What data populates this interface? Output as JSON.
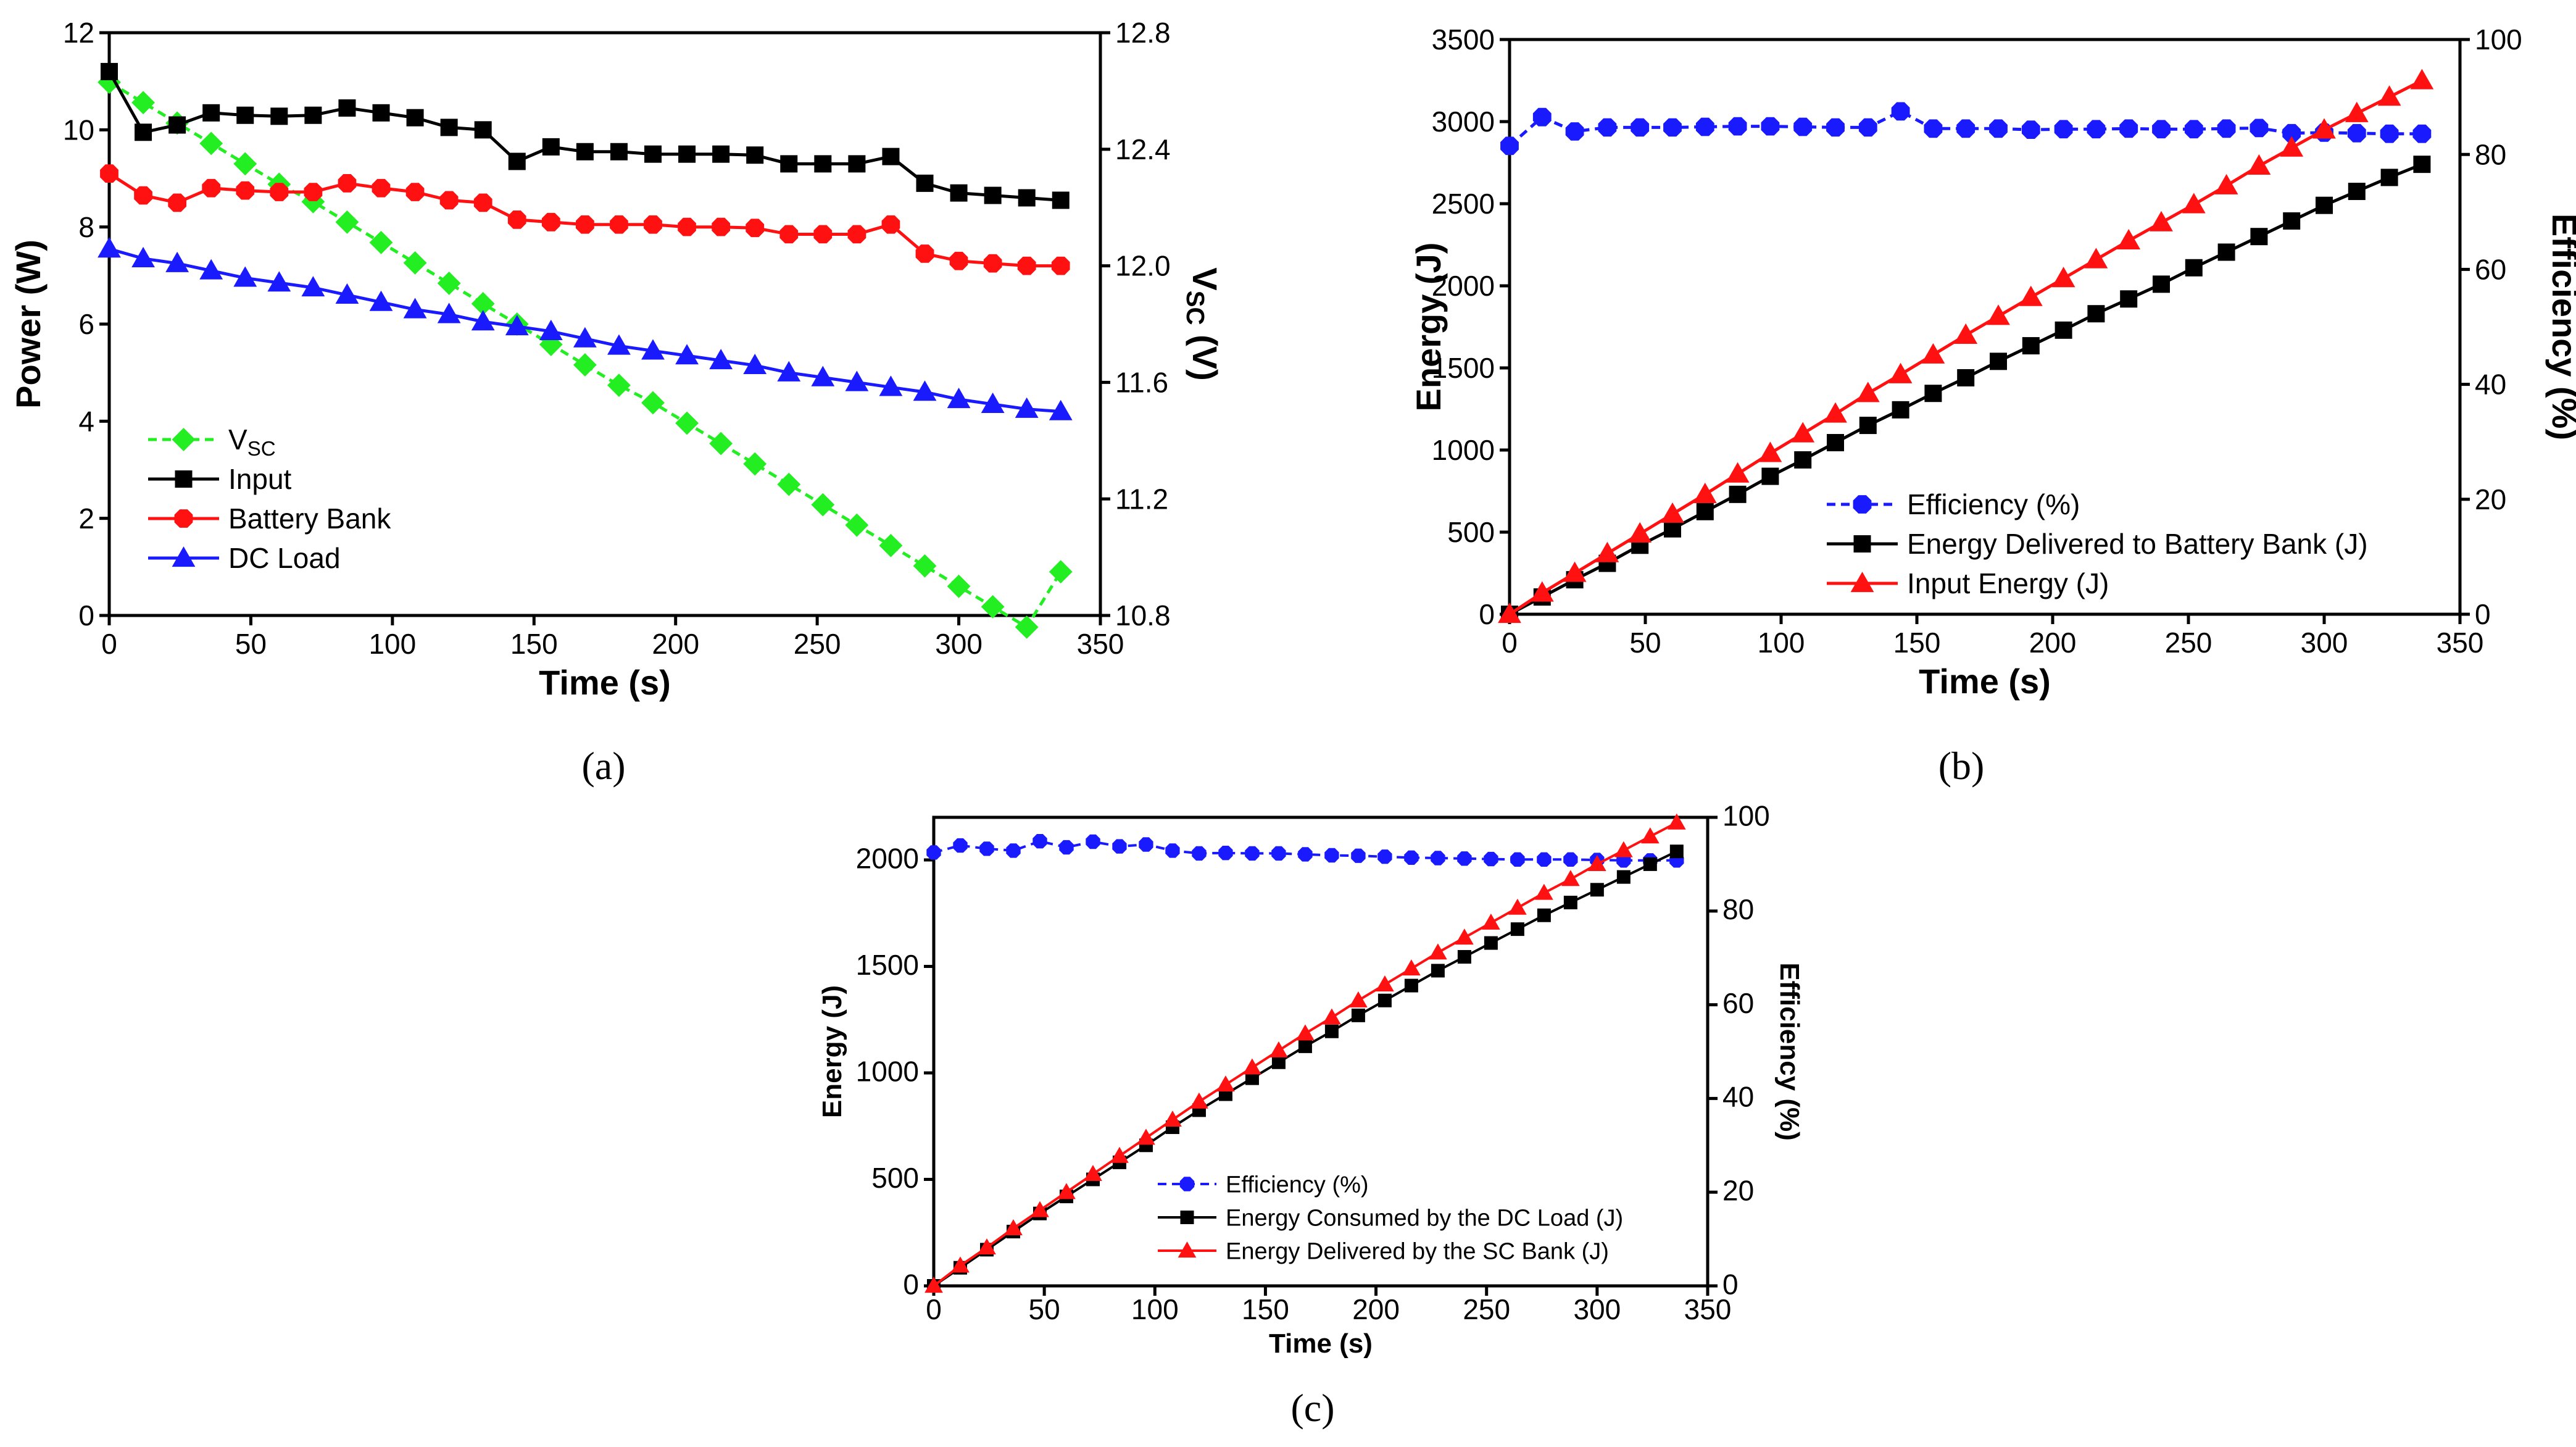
{
  "colors": {
    "green": "#22ee22",
    "black": "#000000",
    "red": "#ff1111",
    "blue": "#1a1aff"
  },
  "chart_data": [
    {
      "id": "a",
      "type": "line",
      "panel_label": "(a)",
      "xlabel": "Time (s)",
      "ylabel": "Power (W)",
      "y2label": "VSC (V)",
      "y2label_main": "V",
      "y2label_sub": "SC",
      "xlim": [
        0,
        350
      ],
      "ylim": [
        0,
        12
      ],
      "y2lim": [
        10.8,
        12.8
      ],
      "xticks": [
        0,
        50,
        100,
        150,
        200,
        250,
        300,
        350
      ],
      "yticks": [
        0,
        2,
        4,
        6,
        8,
        10,
        12
      ],
      "y2ticks": [
        10.8,
        11.2,
        11.6,
        12.0,
        12.4,
        12.8
      ],
      "y2tick_labels": [
        "10.8",
        "11.2",
        "11.6",
        "12.0",
        "12.4",
        "12.8"
      ],
      "legend_position": "bottom-left",
      "series": [
        {
          "name": "VSC",
          "legend_main": "V",
          "legend_sub": "SC",
          "color": "green",
          "marker": "diamond",
          "dashed": true,
          "axis": "right",
          "x": [
            0,
            12,
            24,
            36,
            48,
            60,
            72,
            84,
            96,
            108,
            120,
            132,
            144,
            156,
            168,
            180,
            192,
            204,
            216,
            228,
            240,
            252,
            264,
            276,
            288,
            300,
            312,
            324,
            336
          ],
          "y": [
            12.63,
            12.56,
            12.49,
            12.42,
            12.35,
            12.28,
            12.22,
            12.15,
            12.08,
            12.01,
            11.94,
            11.87,
            11.8,
            11.73,
            11.66,
            11.59,
            11.53,
            11.46,
            11.39,
            11.32,
            11.25,
            11.18,
            11.11,
            11.04,
            10.97,
            10.9,
            10.83,
            10.76,
            10.95
          ]
        },
        {
          "name": "Input",
          "legend": "Input",
          "color": "black",
          "marker": "square",
          "dashed": false,
          "axis": "left",
          "x": [
            0,
            12,
            24,
            36,
            48,
            60,
            72,
            84,
            96,
            108,
            120,
            132,
            144,
            156,
            168,
            180,
            192,
            204,
            216,
            228,
            240,
            252,
            264,
            276,
            288,
            300,
            312,
            324,
            336
          ],
          "y": [
            11.2,
            9.95,
            10.1,
            10.35,
            10.3,
            10.28,
            10.3,
            10.45,
            10.35,
            10.25,
            10.05,
            10.0,
            9.35,
            9.65,
            9.55,
            9.55,
            9.5,
            9.5,
            9.5,
            9.48,
            9.3,
            9.3,
            9.3,
            9.45,
            8.9,
            8.7,
            8.65,
            8.6,
            8.55
          ]
        },
        {
          "name": "Battery Bank",
          "legend": "Battery Bank",
          "color": "red",
          "marker": "octagon",
          "dashed": false,
          "axis": "left",
          "x": [
            0,
            12,
            24,
            36,
            48,
            60,
            72,
            84,
            96,
            108,
            120,
            132,
            144,
            156,
            168,
            180,
            192,
            204,
            216,
            228,
            240,
            252,
            264,
            276,
            288,
            300,
            312,
            324,
            336
          ],
          "y": [
            9.1,
            8.65,
            8.5,
            8.8,
            8.75,
            8.72,
            8.72,
            8.9,
            8.8,
            8.72,
            8.55,
            8.5,
            8.15,
            8.1,
            8.05,
            8.05,
            8.05,
            8.0,
            8.0,
            7.98,
            7.85,
            7.85,
            7.85,
            8.05,
            7.45,
            7.3,
            7.25,
            7.2,
            7.2
          ]
        },
        {
          "name": "DC Load",
          "legend": "DC Load",
          "color": "blue",
          "marker": "triangle",
          "dashed": false,
          "axis": "left",
          "x": [
            0,
            12,
            24,
            36,
            48,
            60,
            72,
            84,
            96,
            108,
            120,
            132,
            144,
            156,
            168,
            180,
            192,
            204,
            216,
            228,
            240,
            252,
            264,
            276,
            288,
            300,
            312,
            324,
            336
          ],
          "y": [
            7.55,
            7.35,
            7.25,
            7.1,
            6.95,
            6.85,
            6.75,
            6.6,
            6.45,
            6.3,
            6.2,
            6.05,
            5.95,
            5.85,
            5.7,
            5.55,
            5.45,
            5.35,
            5.25,
            5.15,
            5.0,
            4.9,
            4.8,
            4.7,
            4.6,
            4.45,
            4.35,
            4.25,
            4.2
          ]
        }
      ]
    },
    {
      "id": "b",
      "type": "line",
      "panel_label": "(b)",
      "xlabel": "Time (s)",
      "ylabel": "Energy (J)",
      "y2label": "Efficiency (%)",
      "xlim": [
        0,
        350
      ],
      "ylim": [
        0,
        3500
      ],
      "y2lim": [
        0,
        100
      ],
      "xticks": [
        0,
        50,
        100,
        150,
        200,
        250,
        300,
        350
      ],
      "yticks": [
        0,
        500,
        1000,
        1500,
        2000,
        2500,
        3000,
        3500
      ],
      "y2ticks": [
        0,
        20,
        40,
        60,
        80,
        100
      ],
      "y2tick_labels": [
        "0",
        "20",
        "40",
        "60",
        "80",
        "100"
      ],
      "legend_position": "bottom-center",
      "series": [
        {
          "name": "Efficiency (%)",
          "legend": "Efficiency (%)",
          "color": "blue",
          "marker": "octagon",
          "dashed": true,
          "axis": "right",
          "x": [
            0,
            12,
            24,
            36,
            48,
            60,
            72,
            84,
            96,
            108,
            120,
            132,
            144,
            156,
            168,
            180,
            192,
            204,
            216,
            228,
            240,
            252,
            264,
            276,
            288,
            300,
            312,
            324,
            336
          ],
          "y": [
            81.5,
            86.5,
            84.0,
            84.7,
            84.7,
            84.7,
            84.8,
            84.9,
            84.9,
            84.8,
            84.7,
            84.7,
            87.5,
            84.5,
            84.5,
            84.5,
            84.3,
            84.4,
            84.4,
            84.5,
            84.4,
            84.4,
            84.5,
            84.6,
            83.7,
            83.8,
            83.7,
            83.6,
            83.6
          ]
        },
        {
          "name": "Energy Delivered to Battery Bank (J)",
          "legend": "Energy Delivered to Battery Bank (J)",
          "color": "black",
          "marker": "square",
          "dashed": false,
          "axis": "left",
          "x": [
            0,
            12,
            24,
            36,
            48,
            60,
            72,
            84,
            96,
            108,
            120,
            132,
            144,
            156,
            168,
            180,
            192,
            204,
            216,
            228,
            240,
            252,
            264,
            276,
            288,
            300,
            312,
            324,
            336
          ],
          "y": [
            0,
            105,
            210,
            310,
            420,
            520,
            625,
            730,
            840,
            940,
            1045,
            1150,
            1245,
            1345,
            1440,
            1540,
            1635,
            1730,
            1830,
            1920,
            2010,
            2110,
            2205,
            2300,
            2395,
            2490,
            2575,
            2660,
            2740
          ]
        },
        {
          "name": "Input Energy (J)",
          "legend": "Input Energy (J)",
          "color": "red",
          "marker": "triangle",
          "dashed": false,
          "axis": "left",
          "x": [
            0,
            12,
            24,
            36,
            48,
            60,
            72,
            84,
            96,
            108,
            120,
            132,
            144,
            156,
            168,
            180,
            192,
            204,
            216,
            228,
            240,
            252,
            264,
            276,
            288,
            300,
            312,
            324,
            336
          ],
          "y": [
            0,
            130,
            250,
            370,
            490,
            610,
            730,
            855,
            980,
            1100,
            1220,
            1345,
            1460,
            1580,
            1700,
            1815,
            1930,
            2045,
            2160,
            2275,
            2385,
            2495,
            2610,
            2730,
            2840,
            2950,
            3050,
            3150,
            3250
          ]
        }
      ]
    },
    {
      "id": "c",
      "type": "line",
      "panel_label": "(c)",
      "xlabel": "Time (s)",
      "ylabel": "Energy (J)",
      "y2label": "Efficiency (%)",
      "xlim": [
        0,
        350
      ],
      "ylim": [
        0,
        2200
      ],
      "y2lim": [
        0,
        100
      ],
      "xticks": [
        0,
        50,
        100,
        150,
        200,
        250,
        300,
        350
      ],
      "yticks": [
        0,
        500,
        1000,
        1500,
        2000
      ],
      "y2ticks": [
        0,
        20,
        40,
        60,
        80,
        100
      ],
      "y2tick_labels": [
        "0",
        "20",
        "40",
        "60",
        "80",
        "100"
      ],
      "legend_position": "bottom-right",
      "series": [
        {
          "name": "Efficiency (%)",
          "legend": "Efficiency (%)",
          "color": "blue",
          "marker": "octagon",
          "dashed": true,
          "axis": "right",
          "x": [
            0,
            12,
            24,
            36,
            48,
            60,
            72,
            84,
            96,
            108,
            120,
            132,
            144,
            156,
            168,
            180,
            192,
            204,
            216,
            228,
            240,
            252,
            264,
            276,
            288,
            300,
            312,
            324,
            336
          ],
          "y": [
            92.5,
            94.0,
            93.3,
            92.9,
            94.9,
            93.6,
            94.8,
            93.8,
            94.2,
            92.9,
            92.3,
            92.4,
            92.3,
            92.3,
            92.1,
            91.9,
            91.8,
            91.6,
            91.4,
            91.3,
            91.2,
            91.1,
            91.0,
            91.0,
            91.0,
            90.9,
            90.8,
            90.8,
            90.8
          ]
        },
        {
          "name": "Energy Consumed by the DC Load (J)",
          "legend": "Energy Consumed by the DC Load (J)",
          "color": "black",
          "marker": "square",
          "dashed": false,
          "axis": "left",
          "x": [
            0,
            12,
            24,
            36,
            48,
            60,
            72,
            84,
            96,
            108,
            120,
            132,
            144,
            156,
            168,
            180,
            192,
            204,
            216,
            228,
            240,
            252,
            264,
            276,
            288,
            300,
            312,
            324,
            336
          ],
          "y": [
            0,
            85,
            170,
            255,
            340,
            420,
            500,
            580,
            660,
            745,
            825,
            900,
            975,
            1050,
            1125,
            1195,
            1270,
            1340,
            1410,
            1480,
            1545,
            1610,
            1675,
            1740,
            1800,
            1860,
            1920,
            1980,
            2040
          ]
        },
        {
          "name": "Energy Delivered by the SC Bank (J)",
          "legend": "Energy Delivered by the SC Bank (J)",
          "color": "red",
          "marker": "triangle",
          "dashed": false,
          "axis": "left",
          "x": [
            0,
            12,
            24,
            36,
            48,
            60,
            72,
            84,
            96,
            108,
            120,
            132,
            144,
            156,
            168,
            180,
            192,
            204,
            216,
            228,
            240,
            252,
            264,
            276,
            288,
            300,
            312,
            324,
            336
          ],
          "y": [
            0,
            95,
            180,
            270,
            355,
            440,
            525,
            610,
            695,
            780,
            865,
            945,
            1025,
            1105,
            1185,
            1260,
            1340,
            1415,
            1490,
            1565,
            1635,
            1705,
            1775,
            1845,
            1910,
            1980,
            2045,
            2110,
            2175
          ]
        }
      ]
    }
  ]
}
